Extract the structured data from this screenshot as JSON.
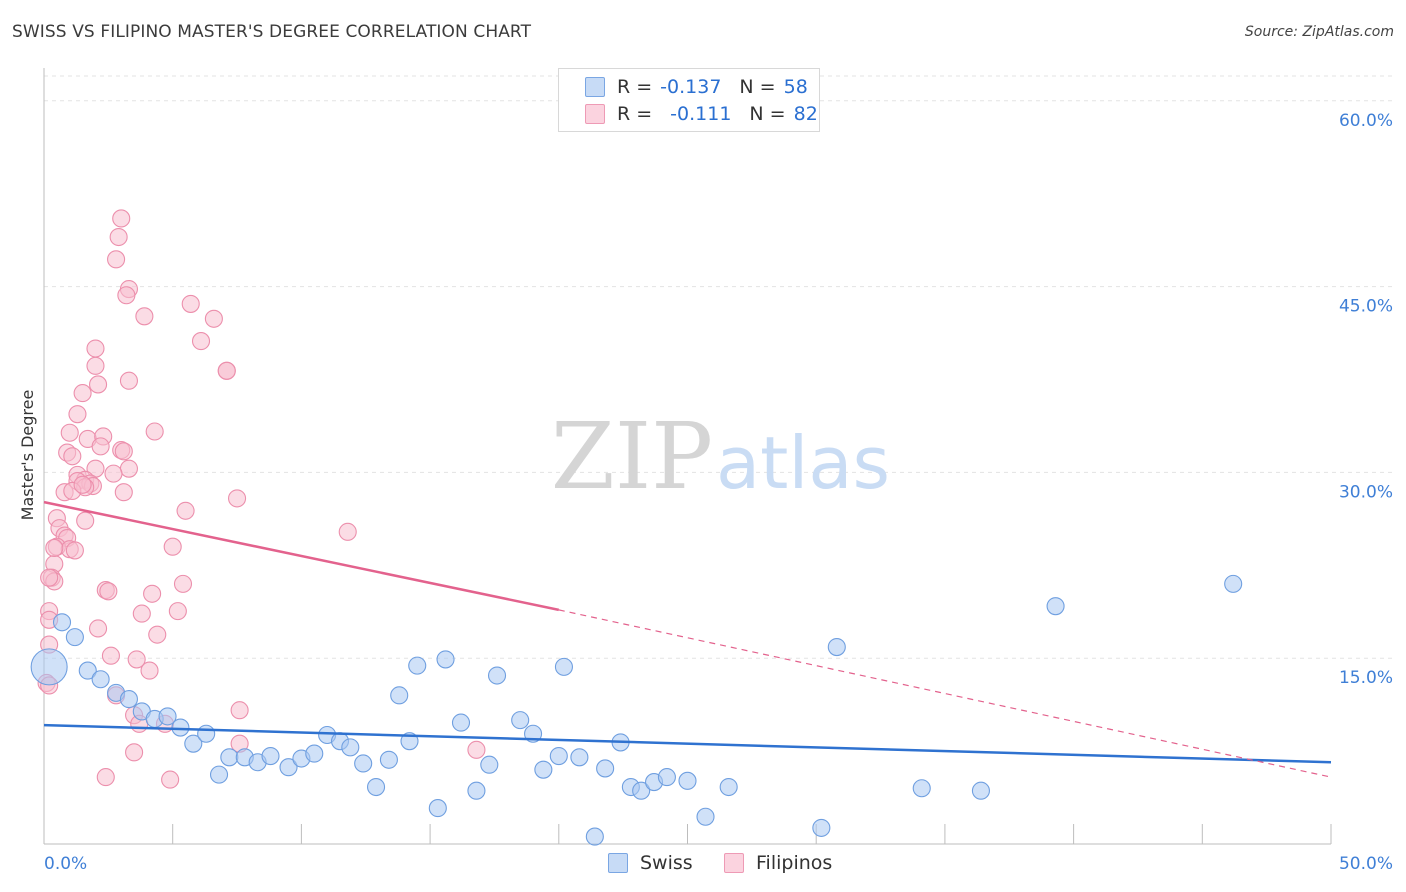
{
  "title": "SWISS VS FILIPINO MASTER'S DEGREE CORRELATION CHART",
  "source": "Source: ZipAtlas.com",
  "watermark": {
    "zip": "ZIP",
    "atlas": "atlas"
  },
  "colors": {
    "swiss_fill": "#a9c8f3",
    "swiss_stroke": "#6f9fe0",
    "swiss_line": "#2f72d0",
    "filipino_fill": "#f8bfd0",
    "filipino_stroke": "#ec8fac",
    "filipino_line": "#e3628d",
    "axis_text": "#3f7fd6",
    "grid": "#e3e3e3"
  },
  "legend": {
    "rows": [
      {
        "r_label": "R =",
        "r_value": "-0.137",
        "n_label": "N =",
        "n_value": "58"
      },
      {
        "r_label": "R =",
        "r_value": "-0.111",
        "n_label": "N =",
        "n_value": "82"
      }
    ],
    "bottom": [
      "Swiss",
      "Filipinos"
    ]
  },
  "chart_data": {
    "type": "scatter",
    "title": "SWISS VS FILIPINO MASTER'S DEGREE CORRELATION CHART",
    "xlabel": "",
    "ylabel": "Master's Degree",
    "x_tick_labels": [
      "0.0%",
      "50.0%"
    ],
    "y_tick_labels": [
      "15.0%",
      "30.0%",
      "45.0%",
      "60.0%"
    ],
    "xlim": [
      0,
      50
    ],
    "ylim": [
      0,
      62
    ],
    "grid": true,
    "legend_position": "top-center",
    "series": [
      {
        "name": "Swiss",
        "R": -0.137,
        "N": 58,
        "trend": {
          "x": [
            0,
            50
          ],
          "y": [
            9.6,
            6.6
          ]
        },
        "points": [
          [
            0.2,
            14.3
          ],
          [
            0.7,
            17.9
          ],
          [
            1.2,
            16.7
          ],
          [
            1.7,
            14.0
          ],
          [
            2.2,
            13.3
          ],
          [
            2.8,
            12.2
          ],
          [
            3.3,
            11.7
          ],
          [
            3.8,
            10.7
          ],
          [
            4.3,
            10.1
          ],
          [
            4.8,
            10.3
          ],
          [
            5.3,
            9.4
          ],
          [
            5.8,
            8.1
          ],
          [
            6.3,
            8.9
          ],
          [
            6.8,
            5.6
          ],
          [
            7.2,
            7.0
          ],
          [
            7.8,
            7.0
          ],
          [
            8.3,
            6.6
          ],
          [
            8.8,
            7.1
          ],
          [
            9.5,
            6.2
          ],
          [
            10.0,
            6.9
          ],
          [
            10.5,
            7.3
          ],
          [
            11.0,
            8.8
          ],
          [
            11.5,
            8.3
          ],
          [
            11.9,
            7.8
          ],
          [
            12.4,
            6.5
          ],
          [
            12.9,
            4.6
          ],
          [
            13.4,
            6.8
          ],
          [
            13.8,
            12.0
          ],
          [
            14.2,
            8.3
          ],
          [
            14.5,
            14.4
          ],
          [
            15.3,
            2.9
          ],
          [
            15.6,
            14.9
          ],
          [
            16.2,
            9.8
          ],
          [
            16.8,
            4.3
          ],
          [
            17.3,
            6.4
          ],
          [
            17.6,
            13.6
          ],
          [
            18.5,
            10.0
          ],
          [
            19.0,
            8.9
          ],
          [
            19.4,
            6.0
          ],
          [
            20.0,
            7.1
          ],
          [
            20.2,
            14.3
          ],
          [
            20.8,
            7.0
          ],
          [
            21.4,
            0.6
          ],
          [
            21.8,
            6.1
          ],
          [
            22.4,
            8.2
          ],
          [
            22.8,
            4.6
          ],
          [
            23.2,
            4.3
          ],
          [
            23.7,
            5.0
          ],
          [
            24.2,
            5.4
          ],
          [
            25.0,
            5.1
          ],
          [
            25.7,
            2.2
          ],
          [
            26.6,
            4.6
          ],
          [
            30.8,
            15.9
          ],
          [
            30.2,
            1.3
          ],
          [
            34.1,
            4.5
          ],
          [
            36.4,
            4.3
          ],
          [
            39.3,
            19.2
          ],
          [
            46.2,
            21.0
          ]
        ]
      },
      {
        "name": "Filipinos",
        "R": -0.111,
        "N": 82,
        "trend": {
          "x": [
            0,
            20
          ],
          "y": [
            27.6,
            18.9
          ]
        },
        "trend_dashed": {
          "x": [
            20,
            50
          ],
          "y": [
            18.9,
            5.4
          ]
        },
        "points": [
          [
            3.0,
            50.5
          ],
          [
            2.9,
            49.0
          ],
          [
            2.8,
            47.2
          ],
          [
            3.3,
            44.8
          ],
          [
            3.2,
            44.3
          ],
          [
            5.7,
            43.6
          ],
          [
            3.9,
            42.6
          ],
          [
            6.6,
            42.4
          ],
          [
            6.1,
            40.6
          ],
          [
            2.0,
            40.0
          ],
          [
            2.0,
            38.6
          ],
          [
            7.1,
            38.2
          ],
          [
            7.1,
            38.2
          ],
          [
            2.1,
            37.1
          ],
          [
            3.3,
            37.4
          ],
          [
            1.5,
            36.4
          ],
          [
            1.3,
            34.7
          ],
          [
            4.3,
            33.3
          ],
          [
            1.0,
            33.2
          ],
          [
            1.7,
            32.7
          ],
          [
            2.3,
            32.9
          ],
          [
            2.2,
            32.1
          ],
          [
            3.0,
            31.8
          ],
          [
            3.1,
            31.7
          ],
          [
            0.9,
            31.6
          ],
          [
            1.1,
            31.3
          ],
          [
            2.0,
            30.3
          ],
          [
            3.3,
            30.3
          ],
          [
            2.7,
            29.9
          ],
          [
            1.3,
            29.8
          ],
          [
            1.6,
            29.4
          ],
          [
            1.3,
            29.3
          ],
          [
            1.8,
            29.1
          ],
          [
            1.9,
            28.9
          ],
          [
            1.6,
            28.8
          ],
          [
            0.8,
            28.4
          ],
          [
            1.1,
            28.5
          ],
          [
            3.1,
            28.4
          ],
          [
            7.5,
            27.9
          ],
          [
            5.5,
            26.9
          ],
          [
            0.5,
            26.3
          ],
          [
            1.6,
            26.1
          ],
          [
            0.6,
            25.5
          ],
          [
            0.8,
            24.9
          ],
          [
            0.9,
            24.7
          ],
          [
            11.8,
            25.2
          ],
          [
            0.5,
            24.0
          ],
          [
            1.0,
            23.8
          ],
          [
            5.0,
            24.0
          ],
          [
            0.4,
            22.6
          ],
          [
            0.3,
            21.5
          ],
          [
            0.4,
            21.2
          ],
          [
            5.4,
            21.0
          ],
          [
            2.4,
            20.5
          ],
          [
            2.5,
            20.4
          ],
          [
            4.2,
            20.2
          ],
          [
            0.2,
            18.8
          ],
          [
            3.8,
            18.6
          ],
          [
            5.2,
            18.8
          ],
          [
            0.2,
            18.1
          ],
          [
            2.1,
            17.4
          ],
          [
            4.4,
            16.9
          ],
          [
            0.2,
            16.1
          ],
          [
            2.6,
            15.2
          ],
          [
            3.6,
            14.9
          ],
          [
            4.1,
            14.0
          ],
          [
            0.1,
            13.0
          ],
          [
            0.2,
            12.8
          ],
          [
            2.8,
            12.0
          ],
          [
            3.5,
            10.4
          ],
          [
            7.6,
            10.8
          ],
          [
            3.7,
            9.7
          ],
          [
            4.7,
            9.7
          ],
          [
            7.6,
            8.1
          ],
          [
            3.5,
            7.4
          ],
          [
            16.8,
            7.6
          ],
          [
            2.4,
            5.4
          ],
          [
            4.9,
            5.2
          ],
          [
            0.4,
            23.9
          ],
          [
            1.5,
            29.0
          ],
          [
            1.2,
            23.7
          ],
          [
            0.2,
            21.5
          ]
        ]
      }
    ]
  }
}
